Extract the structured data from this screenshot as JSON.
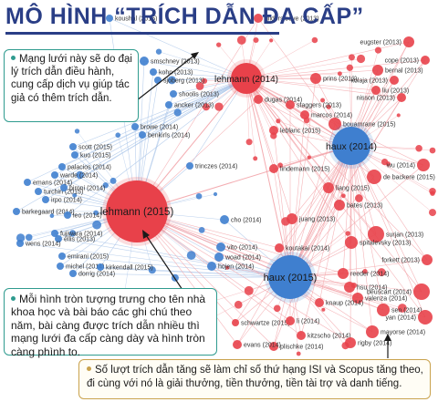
{
  "title": "MÔ HÌNH “TRÍCH DẪN ĐA CẤP”",
  "callouts": {
    "top": "Mạng lưới này sẽ do đại lý trích dẫn điều hành, cung cấp dịch vụ giúp tác giả có thêm trích dẫn.",
    "middle": "Mỗi hình tròn tượng trưng cho tên nhà khoa học và bài báo các ghi chú theo năm, bài càng được trích dẫn nhiều thì mạng lưới đa cấp càng dày và hình tròn càng phình to.",
    "bottom": "Số lượt trích dẫn tăng sẽ làm chỉ số thứ hạng ISI và Scopus tăng theo, đi cùng với nó là giải thưởng, tiền thưởng, tiền tài trợ và danh tiếng."
  },
  "colors": {
    "title": "#2a3e86",
    "red_node": "#e8414a",
    "blue_node": "#3f7fcf",
    "red_edge": "#f2a3a8",
    "blue_edge": "#a9c4e8",
    "callout_border": "#2f9b8f",
    "callout_border_bottom": "#c9a24d"
  },
  "network": {
    "hubs": [
      {
        "label": "lehmann (2015)",
        "color": "red"
      },
      {
        "label": "lehmann (2014)",
        "color": "red"
      },
      {
        "label": "haux (2014)",
        "color": "blue"
      },
      {
        "label": "haux (2015)",
        "color": "blue"
      }
    ],
    "nodes": [
      {
        "label": "koushal (2015)",
        "color": "blue"
      },
      {
        "label": "gildersleeve (2013)",
        "color": "red"
      },
      {
        "label": "eugster (2013)",
        "color": "red"
      },
      {
        "label": "smschney (2013)",
        "color": "blue"
      },
      {
        "label": "kohn (2013)",
        "color": "blue"
      },
      {
        "label": "sjoberg (2013)",
        "color": "blue"
      },
      {
        "label": "cope (2013)",
        "color": "red"
      },
      {
        "label": "bernal (2013)",
        "color": "red"
      },
      {
        "label": "kolaja (2013)",
        "color": "red"
      },
      {
        "label": "prins (2013)",
        "color": "red"
      },
      {
        "label": "nisson (2013)",
        "color": "red"
      },
      {
        "label": "liu (2013)",
        "color": "red"
      },
      {
        "label": "shoolis (2013)",
        "color": "blue"
      },
      {
        "label": "ancker (2013)",
        "color": "blue"
      },
      {
        "label": "dugas (2014)",
        "color": "red"
      },
      {
        "label": "staggers (2013)",
        "color": "red"
      },
      {
        "label": "marcos (2014)",
        "color": "red"
      },
      {
        "label": "browe (2014)",
        "color": "blue"
      },
      {
        "label": "benkirls (2014)",
        "color": "blue"
      },
      {
        "label": "bouamrane (2015)",
        "color": "red"
      },
      {
        "label": "leblanc (2015)",
        "color": "red"
      },
      {
        "label": "trinczes (2014)",
        "color": "blue"
      },
      {
        "label": "lindemann (2015)",
        "color": "red"
      },
      {
        "label": "de backere (2015)",
        "color": "red"
      },
      {
        "label": "liang (2015)",
        "color": "red"
      },
      {
        "label": "bates (2013)",
        "color": "red"
      },
      {
        "label": "wu (2014)",
        "color": "red"
      },
      {
        "label": "scott (2015)",
        "color": "blue"
      },
      {
        "label": "kuo (2015)",
        "color": "blue"
      },
      {
        "label": "palacios (2014)",
        "color": "blue"
      },
      {
        "label": "warde (2014)",
        "color": "blue"
      },
      {
        "label": "emans (2014)",
        "color": "blue"
      },
      {
        "label": "turchin (2015)",
        "color": "blue"
      },
      {
        "label": "bironi (2014)",
        "color": "blue"
      },
      {
        "label": "irpo (2014)",
        "color": "blue"
      },
      {
        "label": "barkegaard (2014)",
        "color": "blue"
      },
      {
        "label": "leo (2014)",
        "color": "blue"
      },
      {
        "label": "fujiwara (2014)",
        "color": "blue"
      },
      {
        "label": "ellis (2013)",
        "color": "blue"
      },
      {
        "label": "wens (2014)",
        "color": "blue"
      },
      {
        "label": "emirani (2015)",
        "color": "blue"
      },
      {
        "label": "michel (2014)",
        "color": "blue"
      },
      {
        "label": "dorrig (2014)",
        "color": "blue"
      },
      {
        "label": "kirkendall (2015)",
        "color": "blue"
      },
      {
        "label": "juang (2013)",
        "color": "red"
      },
      {
        "label": "cho (2014)",
        "color": "blue"
      },
      {
        "label": "vito (2014)",
        "color": "blue"
      },
      {
        "label": "woad (2014)",
        "color": "blue"
      },
      {
        "label": "hojen (2014)",
        "color": "blue"
      },
      {
        "label": "koutakai (2014)",
        "color": "red"
      },
      {
        "label": "surjan (2013)",
        "color": "red"
      },
      {
        "label": "spitalevsky (2013)",
        "color": "red"
      },
      {
        "label": "reeder (2014)",
        "color": "red"
      },
      {
        "label": "hsu (2014)",
        "color": "red"
      },
      {
        "label": "valenza (2014)",
        "color": "red"
      },
      {
        "label": "forkett (2013)",
        "color": "red"
      },
      {
        "label": "beuscart (2014)",
        "color": "red"
      },
      {
        "label": "knaup (2014)",
        "color": "red"
      },
      {
        "label": "sen (2014)",
        "color": "red"
      },
      {
        "label": "yan (2014)",
        "color": "red"
      },
      {
        "label": "schwartze (2015)",
        "color": "red"
      },
      {
        "label": "li (2014)",
        "color": "red"
      },
      {
        "label": "mayorse (2014)",
        "color": "red"
      },
      {
        "label": "kitzscho (2014)",
        "color": "red"
      },
      {
        "label": "rigby (2014)",
        "color": "red"
      },
      {
        "label": "plischke (2014)",
        "color": "red"
      },
      {
        "label": "evans (2014)",
        "color": "red"
      }
    ]
  }
}
